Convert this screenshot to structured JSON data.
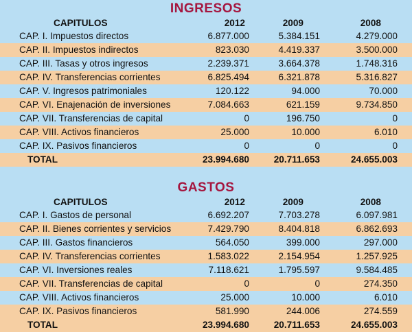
{
  "ingresos": {
    "title": "INGRESOS",
    "headers": {
      "label": "CAPITULOS",
      "y2012": "2012",
      "y2009": "2009",
      "y2008": "2008"
    },
    "rows": [
      {
        "label": "CAP. I. Impuestos directos",
        "y2012": "6.877.000",
        "y2009": "5.384.151",
        "y2008": "4.279.000"
      },
      {
        "label": "CAP. II. Impuestos indirectos",
        "y2012": "823.030",
        "y2009": "4.419.337",
        "y2008": "3.500.000"
      },
      {
        "label": "CAP. III. Tasas y otros ingresos",
        "y2012": "2.239.371",
        "y2009": "3.664.378",
        "y2008": "1.748.316"
      },
      {
        "label": "CAP. IV. Transferencias corrientes",
        "y2012": "6.825.494",
        "y2009": "6.321.878",
        "y2008": "5.316.827"
      },
      {
        "label": "CAP. V. Ingresos patrimoniales",
        "y2012": "120.122",
        "y2009": "94.000",
        "y2008": "70.000"
      },
      {
        "label": "CAP. VI. Enajenación de inversiones",
        "y2012": "7.084.663",
        "y2009": "621.159",
        "y2008": "9.734.850"
      },
      {
        "label": "CAP. VII. Transferencias de capital",
        "y2012": "0",
        "y2009": "196.750",
        "y2008": "0"
      },
      {
        "label": "CAP. VIII. Activos financieros",
        "y2012": "25.000",
        "y2009": "10.000",
        "y2008": "6.010"
      },
      {
        "label": "CAP. IX. Pasivos financieros",
        "y2012": "0",
        "y2009": "0",
        "y2008": "0"
      }
    ],
    "total": {
      "label": "TOTAL",
      "y2012": "23.994.680",
      "y2009": "20.711.653",
      "y2008": "24.655.003"
    }
  },
  "gastos": {
    "title": "GASTOS",
    "headers": {
      "label": "CAPITULOS",
      "y2012": "2012",
      "y2009": "2009",
      "y2008": "2008"
    },
    "rows": [
      {
        "label": "CAP. I. Gastos de personal",
        "y2012": "6.692.207",
        "y2009": "7.703.278",
        "y2008": "6.097.981"
      },
      {
        "label": "CAP. II. Bienes corrientes y servicios",
        "y2012": "7.429.790",
        "y2009": "8.404.818",
        "y2008": "6.862.693"
      },
      {
        "label": "CAP. III. Gastos financieros",
        "y2012": "564.050",
        "y2009": "399.000",
        "y2008": "297.000"
      },
      {
        "label": "CAP. IV. Transferencias corrientes",
        "y2012": "1.583.022",
        "y2009": "2.154.954",
        "y2008": "1.257.925"
      },
      {
        "label": "CAP. VI. Inversiones reales",
        "y2012": "7.118.621",
        "y2009": "1.795.597",
        "y2008": "9.584.485"
      },
      {
        "label": "CAP. VII. Transferencias de capital",
        "y2012": "0",
        "y2009": "0",
        "y2008": "274.350"
      },
      {
        "label": "CAP. VIII. Activos financieros",
        "y2012": "25.000",
        "y2009": "10.000",
        "y2008": "6.010"
      },
      {
        "label": "CAP. IX. Pasivos financieros",
        "y2012": "581.990",
        "y2009": "244.006",
        "y2008": "274.559"
      }
    ],
    "total": {
      "label": "TOTAL",
      "y2012": "23.994.680",
      "y2009": "20.711.653",
      "y2008": "24.655.003"
    }
  },
  "colors": {
    "title": "#a5163f",
    "row_blue": "#b9def3",
    "row_orange": "#f6cfa3"
  }
}
